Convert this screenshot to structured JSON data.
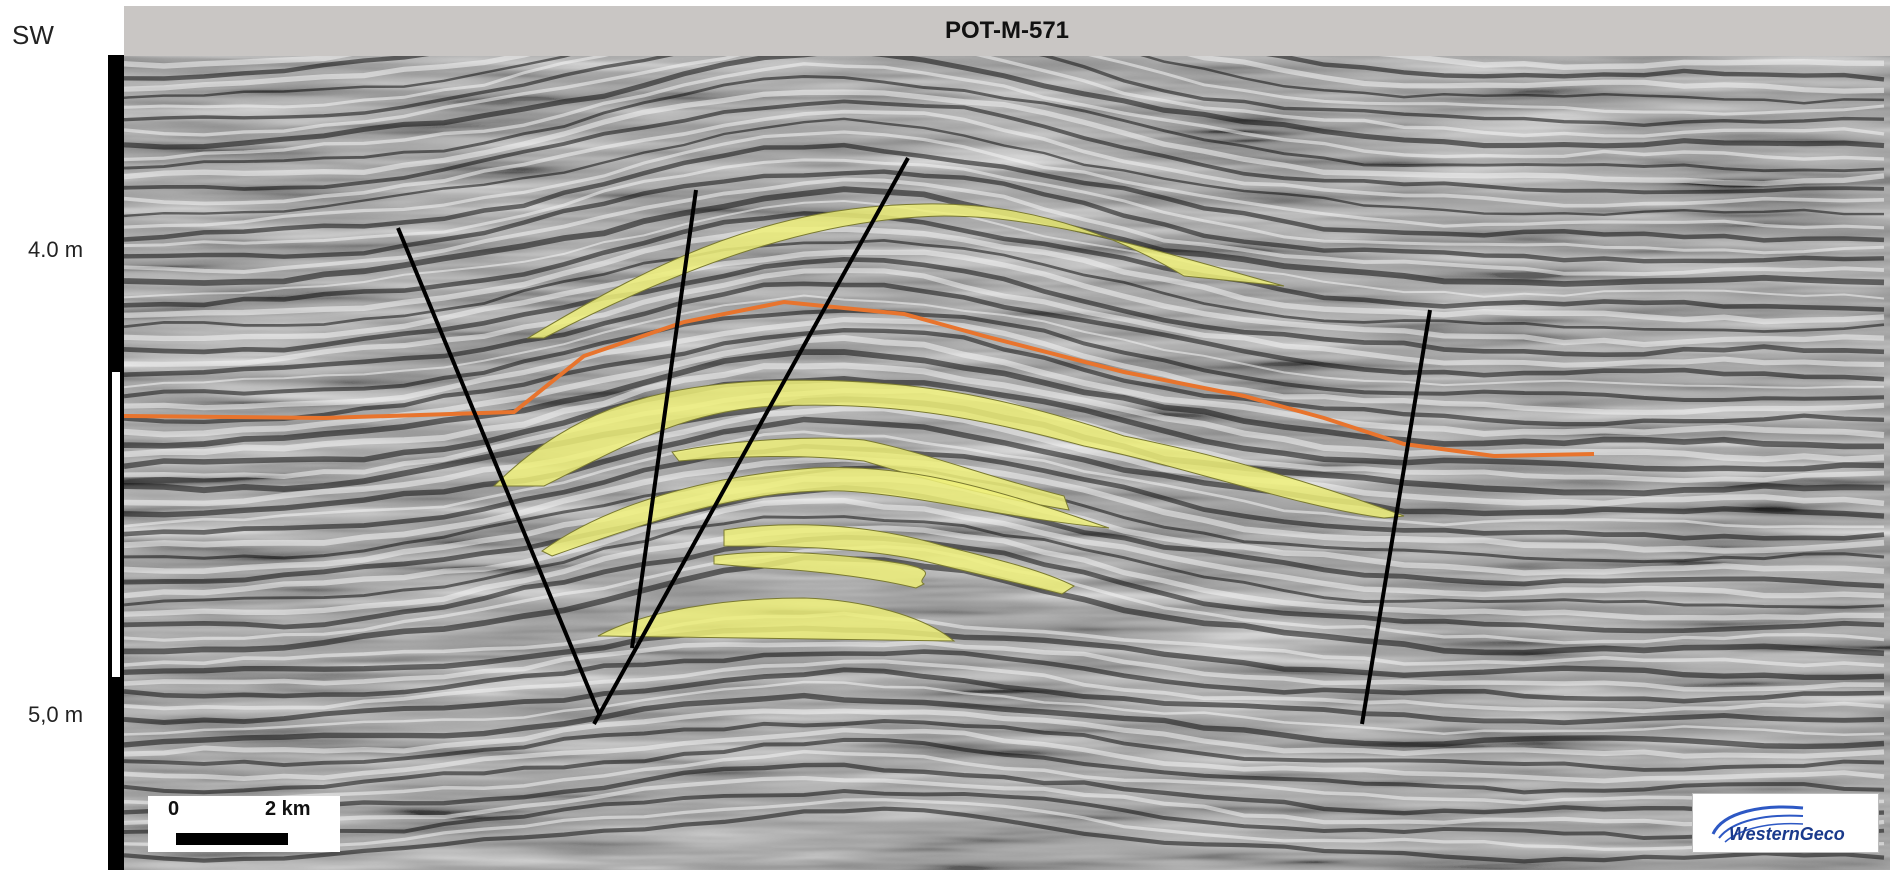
{
  "header": {
    "direction_label": "SW",
    "title": "POT-M-571"
  },
  "depth_axis": {
    "labels": [
      "4.0 m",
      "5,0 m"
    ]
  },
  "scale_bar": {
    "start_label": "0",
    "end_label": "2 km"
  },
  "logo": {
    "text": "WesternGeco"
  },
  "colors": {
    "horizon": "#e8742d",
    "bodies": "#eef07a",
    "faults": "#000000"
  }
}
